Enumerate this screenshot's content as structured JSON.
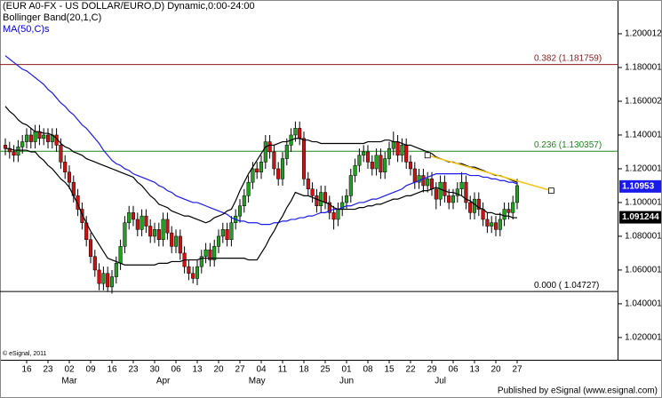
{
  "chart_data": {
    "type": "candlestick",
    "title": "(EUR A0-FX - US DOLLAR/EURO,D) Dynamic,0:00-24:00",
    "indicator_labels": [
      {
        "text": "Bollinger Band(20,1,C)",
        "color": "#000000"
      },
      {
        "text": "MA(50,C)s",
        "color": "#0000cc"
      }
    ],
    "categories": [
      null,
      null,
      null,
      null,
      null,
      "16",
      null,
      null,
      null,
      null,
      "23",
      null,
      null,
      null,
      null,
      "02",
      null,
      null,
      null,
      null,
      "09",
      null,
      null,
      null,
      null,
      "16",
      null,
      null,
      null,
      null,
      "23",
      null,
      null,
      null,
      null,
      "30",
      null,
      null,
      null,
      null,
      "06",
      null,
      null,
      null,
      null,
      "13",
      null,
      null,
      null,
      null,
      "20",
      null,
      null,
      null,
      null,
      "27",
      null,
      null,
      null,
      null,
      "04",
      null,
      null,
      null,
      null,
      "11",
      null,
      null,
      null,
      null,
      "18",
      null,
      null,
      null,
      null,
      "25",
      null,
      null,
      null,
      null,
      "01",
      null,
      null,
      null,
      null,
      "08",
      null,
      null,
      null,
      null,
      "15",
      null,
      null,
      null,
      null,
      "22",
      null,
      null,
      null,
      null,
      "29",
      null,
      null,
      null,
      null,
      "06",
      null,
      null,
      null,
      null,
      "13",
      null,
      null,
      null,
      null,
      "20",
      null,
      null,
      null,
      null,
      "27"
    ],
    "months": [
      "Mar",
      "Apr",
      "May",
      "Jun",
      "Jul"
    ],
    "up_color": "#22a022",
    "down_color": "#d01010",
    "ohlc": [
      [
        1.134,
        1.138,
        1.128,
        1.132
      ],
      [
        1.132,
        1.136,
        1.126,
        1.13
      ],
      [
        1.13,
        1.134,
        1.124,
        1.128
      ],
      [
        1.128,
        1.137,
        1.124,
        1.133
      ],
      [
        1.133,
        1.14,
        1.129,
        1.136
      ],
      [
        1.136,
        1.144,
        1.132,
        1.14
      ],
      [
        1.14,
        1.144,
        1.132,
        1.136
      ],
      [
        1.136,
        1.146,
        1.132,
        1.142
      ],
      [
        1.142,
        1.146,
        1.134,
        1.138
      ],
      [
        1.138,
        1.144,
        1.134,
        1.14
      ],
      [
        1.14,
        1.144,
        1.132,
        1.136
      ],
      [
        1.136,
        1.144,
        1.132,
        1.14
      ],
      [
        1.14,
        1.144,
        1.13,
        1.134
      ],
      [
        1.134,
        1.138,
        1.12,
        1.124
      ],
      [
        1.124,
        1.128,
        1.114,
        1.118
      ],
      [
        1.118,
        1.122,
        1.108,
        1.112
      ],
      [
        1.112,
        1.116,
        1.1,
        1.104
      ],
      [
        1.104,
        1.108,
        1.092,
        1.096
      ],
      [
        1.096,
        1.1,
        1.084,
        1.088
      ],
      [
        1.088,
        1.092,
        1.074,
        1.078
      ],
      [
        1.078,
        1.082,
        1.064,
        1.068
      ],
      [
        1.068,
        1.072,
        1.056,
        1.06
      ],
      [
        1.06,
        1.064,
        1.048,
        1.052
      ],
      [
        1.052,
        1.062,
        1.048,
        1.058
      ],
      [
        1.058,
        1.062,
        1.047,
        1.05
      ],
      [
        1.05,
        1.06,
        1.046,
        1.056
      ],
      [
        1.056,
        1.068,
        1.052,
        1.064
      ],
      [
        1.064,
        1.078,
        1.06,
        1.074
      ],
      [
        1.074,
        1.092,
        1.07,
        1.088
      ],
      [
        1.088,
        1.098,
        1.084,
        1.094
      ],
      [
        1.094,
        1.098,
        1.086,
        1.09
      ],
      [
        1.09,
        1.094,
        1.08,
        1.084
      ],
      [
        1.084,
        1.096,
        1.08,
        1.092
      ],
      [
        1.092,
        1.096,
        1.082,
        1.086
      ],
      [
        1.086,
        1.09,
        1.076,
        1.08
      ],
      [
        1.08,
        1.088,
        1.076,
        1.084
      ],
      [
        1.084,
        1.088,
        1.074,
        1.078
      ],
      [
        1.078,
        1.094,
        1.074,
        1.09
      ],
      [
        1.09,
        1.094,
        1.078,
        1.082
      ],
      [
        1.082,
        1.086,
        1.07,
        1.074
      ],
      [
        1.074,
        1.084,
        1.07,
        1.08
      ],
      [
        1.08,
        1.084,
        1.066,
        1.07
      ],
      [
        1.07,
        1.074,
        1.058,
        1.062
      ],
      [
        1.062,
        1.066,
        1.054,
        1.058
      ],
      [
        1.058,
        1.062,
        1.052,
        1.055
      ],
      [
        1.055,
        1.066,
        1.051,
        1.062
      ],
      [
        1.062,
        1.072,
        1.058,
        1.068
      ],
      [
        1.068,
        1.076,
        1.064,
        1.072
      ],
      [
        1.072,
        1.076,
        1.062,
        1.066
      ],
      [
        1.066,
        1.078,
        1.062,
        1.074
      ],
      [
        1.074,
        1.084,
        1.07,
        1.08
      ],
      [
        1.08,
        1.088,
        1.076,
        1.084
      ],
      [
        1.084,
        1.088,
        1.074,
        1.078
      ],
      [
        1.078,
        1.092,
        1.074,
        1.088
      ],
      [
        1.088,
        1.096,
        1.084,
        1.092
      ],
      [
        1.092,
        1.102,
        1.088,
        1.098
      ],
      [
        1.098,
        1.108,
        1.094,
        1.104
      ],
      [
        1.104,
        1.116,
        1.1,
        1.112
      ],
      [
        1.112,
        1.124,
        1.108,
        1.12
      ],
      [
        1.12,
        1.124,
        1.114,
        1.118
      ],
      [
        1.118,
        1.128,
        1.114,
        1.124
      ],
      [
        1.124,
        1.14,
        1.12,
        1.136
      ],
      [
        1.136,
        1.14,
        1.126,
        1.13
      ],
      [
        1.13,
        1.134,
        1.116,
        1.12
      ],
      [
        1.12,
        1.124,
        1.11,
        1.114
      ],
      [
        1.114,
        1.13,
        1.11,
        1.126
      ],
      [
        1.126,
        1.138,
        1.122,
        1.134
      ],
      [
        1.134,
        1.144,
        1.13,
        1.14
      ],
      [
        1.14,
        1.148,
        1.136,
        1.144
      ],
      [
        1.144,
        1.148,
        1.134,
        1.138
      ],
      [
        1.138,
        1.142,
        1.11,
        1.114
      ],
      [
        1.114,
        1.118,
        1.104,
        1.108
      ],
      [
        1.108,
        1.112,
        1.1,
        1.104
      ],
      [
        1.104,
        1.108,
        1.094,
        1.098
      ],
      [
        1.098,
        1.11,
        1.094,
        1.106
      ],
      [
        1.106,
        1.11,
        1.096,
        1.1
      ],
      [
        1.1,
        1.104,
        1.09,
        1.094
      ],
      [
        1.094,
        1.098,
        1.084,
        1.09
      ],
      [
        1.09,
        1.1,
        1.086,
        1.096
      ],
      [
        1.096,
        1.104,
        1.092,
        1.1
      ],
      [
        1.1,
        1.108,
        1.096,
        1.104
      ],
      [
        1.104,
        1.12,
        1.1,
        1.116
      ],
      [
        1.116,
        1.126,
        1.112,
        1.122
      ],
      [
        1.122,
        1.132,
        1.118,
        1.128
      ],
      [
        1.128,
        1.134,
        1.124,
        1.13
      ],
      [
        1.13,
        1.134,
        1.12,
        1.124
      ],
      [
        1.124,
        1.128,
        1.116,
        1.12
      ],
      [
        1.12,
        1.132,
        1.116,
        1.128
      ],
      [
        1.128,
        1.132,
        1.114,
        1.118
      ],
      [
        1.118,
        1.13,
        1.114,
        1.126
      ],
      [
        1.126,
        1.136,
        1.122,
        1.132
      ],
      [
        1.132,
        1.142,
        1.128,
        1.136
      ],
      [
        1.136,
        1.14,
        1.124,
        1.128
      ],
      [
        1.128,
        1.138,
        1.124,
        1.134
      ],
      [
        1.134,
        1.138,
        1.12,
        1.124
      ],
      [
        1.124,
        1.128,
        1.116,
        1.12
      ],
      [
        1.12,
        1.124,
        1.108,
        1.112
      ],
      [
        1.112,
        1.12,
        1.108,
        1.116
      ],
      [
        1.116,
        1.12,
        1.106,
        1.11
      ],
      [
        1.11,
        1.118,
        1.106,
        1.114
      ],
      [
        1.114,
        1.118,
        1.104,
        1.108
      ],
      [
        1.108,
        1.112,
        1.096,
        1.102
      ],
      [
        1.102,
        1.116,
        1.098,
        1.112
      ],
      [
        1.112,
        1.116,
        1.1,
        1.104
      ],
      [
        1.104,
        1.108,
        1.096,
        1.1
      ],
      [
        1.1,
        1.108,
        1.096,
        1.104
      ],
      [
        1.104,
        1.112,
        1.1,
        1.108
      ],
      [
        1.108,
        1.118,
        1.104,
        1.112
      ],
      [
        1.112,
        1.116,
        1.096,
        1.1
      ],
      [
        1.1,
        1.104,
        1.09,
        1.094
      ],
      [
        1.094,
        1.106,
        1.09,
        1.102
      ],
      [
        1.102,
        1.106,
        1.092,
        1.096
      ],
      [
        1.096,
        1.1,
        1.086,
        1.09
      ],
      [
        1.09,
        1.094,
        1.082,
        1.086
      ],
      [
        1.086,
        1.092,
        1.082,
        1.088
      ],
      [
        1.088,
        1.092,
        1.08,
        1.084
      ],
      [
        1.084,
        1.094,
        1.08,
        1.09
      ],
      [
        1.09,
        1.1,
        1.086,
        1.096
      ],
      [
        1.096,
        1.1,
        1.09,
        1.094
      ],
      [
        1.094,
        1.104,
        1.09,
        1.1
      ],
      [
        1.1,
        1.114,
        1.096,
        1.11
      ]
    ],
    "series": [
      {
        "name": "MA(50,C)s",
        "color": "#1a1aee",
        "values": [
          1.187,
          1.185,
          1.183,
          1.181,
          1.179,
          1.178,
          1.176,
          1.174,
          1.172,
          1.17,
          1.167,
          1.165,
          1.162,
          1.159,
          1.157,
          1.154,
          1.152,
          1.149,
          1.146,
          1.144,
          1.141,
          1.138,
          1.135,
          1.131,
          1.128,
          1.125,
          1.123,
          1.122,
          1.12,
          1.119,
          1.117,
          1.116,
          1.115,
          1.114,
          1.113,
          1.112,
          1.11,
          1.109,
          1.107,
          1.106,
          1.104,
          1.103,
          1.102,
          1.101,
          1.1,
          1.1,
          1.099,
          1.098,
          1.097,
          1.096,
          1.095,
          1.094,
          1.093,
          1.091,
          1.09,
          1.089,
          1.089,
          1.088,
          1.088,
          1.088,
          1.087,
          1.087,
          1.087,
          1.088,
          1.088,
          1.089,
          1.089,
          1.09,
          1.09,
          1.091,
          1.091,
          1.092,
          1.092,
          1.093,
          1.094,
          1.094,
          1.095,
          1.096,
          1.096,
          1.097,
          1.098,
          1.098,
          1.099,
          1.1,
          1.1,
          1.101,
          1.102,
          1.102,
          1.103,
          1.104,
          1.105,
          1.106,
          1.107,
          1.108,
          1.11,
          1.111,
          1.112,
          1.113,
          1.114,
          1.115,
          1.116,
          1.117,
          1.117,
          1.117,
          1.117,
          1.117,
          1.117,
          1.117,
          1.117,
          1.116,
          1.116,
          1.116,
          1.115,
          1.115,
          1.114,
          1.114,
          1.113,
          1.113,
          1.112,
          1.112,
          1.111
        ]
      },
      {
        "name": "Bollinger upper",
        "color": "#000000",
        "values": [
          1.157,
          1.154,
          1.152,
          1.149,
          1.147,
          1.146,
          1.144,
          1.142,
          1.142,
          1.141,
          1.141,
          1.14,
          1.138,
          1.135,
          1.133,
          1.132,
          1.13,
          1.129,
          1.128,
          1.126,
          1.125,
          1.124,
          1.123,
          1.122,
          1.121,
          1.12,
          1.119,
          1.118,
          1.117,
          1.116,
          1.115,
          1.112,
          1.11,
          1.107,
          1.104,
          1.102,
          1.099,
          1.098,
          1.097,
          1.095,
          1.094,
          1.093,
          1.092,
          1.092,
          1.091,
          1.09,
          1.089,
          1.088,
          1.089,
          1.091,
          1.092,
          1.093,
          1.095,
          1.096,
          1.101,
          1.107,
          1.112,
          1.117,
          1.121,
          1.125,
          1.129,
          1.133,
          1.134,
          1.134,
          1.135,
          1.136,
          1.136,
          1.137,
          1.138,
          1.138,
          1.137,
          1.137,
          1.136,
          1.136,
          1.135,
          1.135,
          1.135,
          1.135,
          1.135,
          1.135,
          1.135,
          1.135,
          1.135,
          1.135,
          1.135,
          1.136,
          1.136,
          1.136,
          1.136,
          1.137,
          1.137,
          1.136,
          1.136,
          1.135,
          1.134,
          1.134,
          1.133,
          1.132,
          1.131,
          1.13,
          1.129,
          1.127,
          1.126,
          1.125,
          1.124,
          1.124,
          1.123,
          1.123,
          1.122,
          1.121,
          1.121,
          1.12,
          1.119,
          1.118,
          1.117,
          1.116,
          1.116,
          1.115,
          1.114,
          1.113,
          1.112
        ]
      },
      {
        "name": "Bollinger lower",
        "color": "#000000",
        "values": [
          1.132,
          1.132,
          1.131,
          1.131,
          1.131,
          1.131,
          1.13,
          1.13,
          1.127,
          1.125,
          1.122,
          1.12,
          1.117,
          1.114,
          1.112,
          1.109,
          1.104,
          1.099,
          1.093,
          1.088,
          1.083,
          1.079,
          1.075,
          1.071,
          1.067,
          1.066,
          1.065,
          1.064,
          1.063,
          1.063,
          1.063,
          1.063,
          1.063,
          1.063,
          1.063,
          1.063,
          1.064,
          1.064,
          1.064,
          1.065,
          1.065,
          1.065,
          1.066,
          1.066,
          1.066,
          1.066,
          1.067,
          1.067,
          1.067,
          1.067,
          1.067,
          1.067,
          1.067,
          1.067,
          1.067,
          1.067,
          1.067,
          1.066,
          1.066,
          1.066,
          1.07,
          1.074,
          1.079,
          1.083,
          1.088,
          1.092,
          1.097,
          1.101,
          1.106,
          1.105,
          1.104,
          1.104,
          1.103,
          1.102,
          1.101,
          1.1,
          1.099,
          1.097,
          1.096,
          1.096,
          1.096,
          1.096,
          1.096,
          1.097,
          1.097,
          1.098,
          1.098,
          1.099,
          1.099,
          1.1,
          1.101,
          1.102,
          1.102,
          1.103,
          1.104,
          1.104,
          1.105,
          1.106,
          1.107,
          1.107,
          1.108,
          1.109,
          1.108,
          1.107,
          1.106,
          1.106,
          1.105,
          1.104,
          1.102,
          1.101,
          1.099,
          1.097,
          1.096,
          1.094,
          1.094,
          1.093,
          1.093,
          1.092,
          1.092,
          1.091,
          1.091
        ]
      }
    ],
    "fib_levels": [
      {
        "label": "0.382 (1.181759)",
        "value": 1.181759,
        "color": "#8b1a1a"
      },
      {
        "label": "0.236 (1.130357)",
        "value": 1.130357,
        "color": "#1a8a1a"
      },
      {
        "label": "0.000 ( 1.04727)",
        "value": 1.04727,
        "color": "#000000"
      }
    ],
    "trendline": {
      "values": [
        1.128,
        1.107
      ],
      "color": "#f5c518"
    },
    "price_markers": [
      {
        "value": 1.10953,
        "color": "#1a1aee"
      },
      {
        "value": 1.091244,
        "color": "#000000"
      }
    ],
    "ylim": [
      1.0068,
      1.22
    ],
    "yticks": [
      1.020001,
      1.040001,
      1.060001,
      1.080001,
      1.100001,
      1.120001,
      1.140001,
      1.160002,
      1.180001,
      1.200012
    ],
    "copyright": "© eSignal, 2011",
    "footer": "Published by eSignal (www.esignal.com)"
  }
}
